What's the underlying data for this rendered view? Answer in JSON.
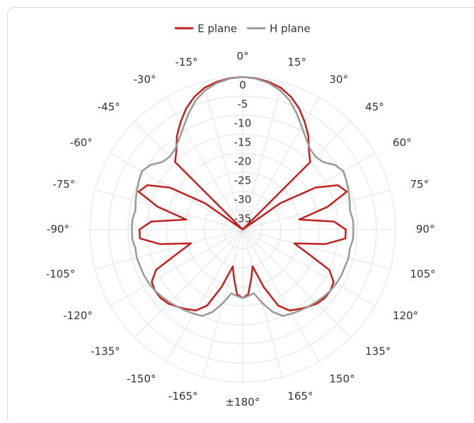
{
  "chart_data": {
    "type": "polar-line",
    "x": [
      -180,
      -175,
      -170,
      -165,
      -160,
      -155,
      -150,
      -145,
      -140,
      -135,
      -130,
      -125,
      -120,
      -115,
      -110,
      -105,
      -100,
      -95,
      -90,
      -85,
      -80,
      -75,
      -70,
      -65,
      -60,
      -55,
      -50,
      -45,
      -40,
      -35,
      -30,
      -25,
      -20,
      -15,
      -10,
      -5,
      0,
      5,
      10,
      15,
      20,
      25,
      30,
      35,
      40,
      45,
      50,
      55,
      60,
      65,
      70,
      75,
      80,
      85,
      90,
      95,
      100,
      105,
      110,
      115,
      120,
      125,
      130,
      135,
      140,
      145,
      150,
      155,
      160,
      165,
      170,
      175,
      180
    ],
    "series": [
      {
        "name": "E plane",
        "color": "#c0201e",
        "values": [
          -22,
          -23,
          -27,
          -30,
          -24,
          -18,
          -15.5,
          -14.5,
          -13.5,
          -12.5,
          -12,
          -12,
          -12.5,
          -15,
          -22,
          -26,
          -18,
          -13,
          -13,
          -16,
          -25,
          -17,
          -11,
          -12.5,
          -18,
          -28,
          -40,
          -15,
          -13,
          -10,
          -7.5,
          -5,
          -3,
          -1.5,
          -0.7,
          -0.2,
          0,
          -0.2,
          -0.7,
          -1.5,
          -3,
          -5,
          -7.5,
          -10,
          -13,
          -15,
          -40,
          -28,
          -18,
          -12.5,
          -11,
          -17,
          -25,
          -16,
          -13,
          -13,
          -18,
          -26,
          -22,
          -15,
          -12.5,
          -12,
          -12,
          -12.5,
          -13.5,
          -14.5,
          -15.5,
          -18,
          -24,
          -30,
          -27,
          -23,
          -22
        ]
      },
      {
        "name": "H plane",
        "color": "#999999",
        "values": [
          -22,
          -22.5,
          -23,
          -20,
          -17,
          -15,
          -14.5,
          -14,
          -13.5,
          -13,
          -12.5,
          -12,
          -11.7,
          -11.5,
          -11.5,
          -11.3,
          -11.5,
          -11,
          -11,
          -11,
          -11.5,
          -11,
          -10.5,
          -10,
          -9.5,
          -10.5,
          -12.5,
          -13,
          -12.5,
          -11,
          -9,
          -6.5,
          -4,
          -2.2,
          -1,
          -0.3,
          0,
          -0.3,
          -1,
          -2.2,
          -4,
          -6.5,
          -9,
          -11,
          -12.5,
          -13,
          -12.5,
          -10.5,
          -9.5,
          -10,
          -10.5,
          -11,
          -11.5,
          -11,
          -11,
          -11,
          -11.5,
          -11.3,
          -11.5,
          -11.5,
          -11.7,
          -12,
          -12.5,
          -13,
          -13.5,
          -14,
          -14.5,
          -15,
          -17,
          -20,
          -23,
          -22.5,
          -22
        ]
      }
    ],
    "rlim": [
      -40,
      0
    ],
    "rticks": [
      0,
      -5,
      -10,
      -15,
      -20,
      -25,
      -30,
      -35
    ],
    "angle_ticks": [
      {
        "value": 0,
        "label": "0°"
      },
      {
        "value": 15,
        "label": "15°"
      },
      {
        "value": 30,
        "label": "30°"
      },
      {
        "value": 45,
        "label": "45°"
      },
      {
        "value": 60,
        "label": "60°"
      },
      {
        "value": 75,
        "label": "75°"
      },
      {
        "value": 90,
        "label": "90°"
      },
      {
        "value": 105,
        "label": "105°"
      },
      {
        "value": 120,
        "label": "120°"
      },
      {
        "value": 135,
        "label": "135°"
      },
      {
        "value": 150,
        "label": "150°"
      },
      {
        "value": 165,
        "label": "165°"
      },
      {
        "value": 180,
        "label": "±180°"
      },
      {
        "value": -165,
        "label": "-165°"
      },
      {
        "value": -150,
        "label": "-150°"
      },
      {
        "value": -135,
        "label": "-135°"
      },
      {
        "value": -120,
        "label": "-120°"
      },
      {
        "value": -105,
        "label": "-105°"
      },
      {
        "value": -90,
        "label": "-90°"
      },
      {
        "value": -75,
        "label": "-75°"
      },
      {
        "value": -60,
        "label": "-60°"
      },
      {
        "value": -45,
        "label": "-45°"
      },
      {
        "value": -30,
        "label": "-30°"
      },
      {
        "value": -15,
        "label": "-15°"
      }
    ],
    "legend": "top"
  }
}
